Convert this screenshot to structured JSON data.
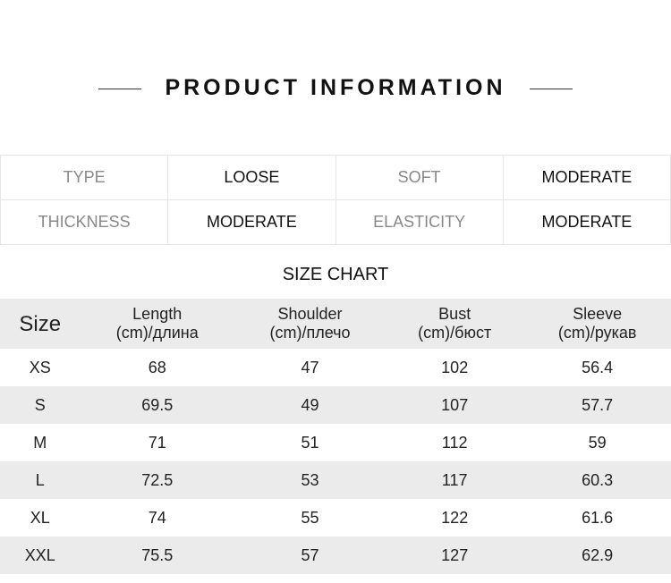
{
  "title": "PRODUCT INFORMATION",
  "info": [
    [
      "TYPE",
      "LOOSE",
      "SOFT",
      "MODERATE"
    ],
    [
      "THICKNESS",
      "MODERATE",
      "ELASTICITY",
      "MODERATE"
    ]
  ],
  "size_chart_title": "SIZE CHART",
  "headers": [
    [
      "Size",
      ""
    ],
    [
      "Length",
      "(cm)/длина"
    ],
    [
      "Shoulder",
      "(cm)/плечо"
    ],
    [
      "Bust",
      "(cm)/бюст"
    ],
    [
      "Sleeve",
      "(cm)/рукав"
    ]
  ],
  "rows": [
    [
      "XS",
      "68",
      "47",
      "102",
      "56.4"
    ],
    [
      "S",
      "69.5",
      "49",
      "107",
      "57.7"
    ],
    [
      "M",
      "71",
      "51",
      "112",
      "59"
    ],
    [
      "L",
      "72.5",
      "53",
      "117",
      "60.3"
    ],
    [
      "XL",
      "74",
      "55",
      "122",
      "61.6"
    ],
    [
      "XXL",
      "75.5",
      "57",
      "127",
      "62.9"
    ]
  ]
}
